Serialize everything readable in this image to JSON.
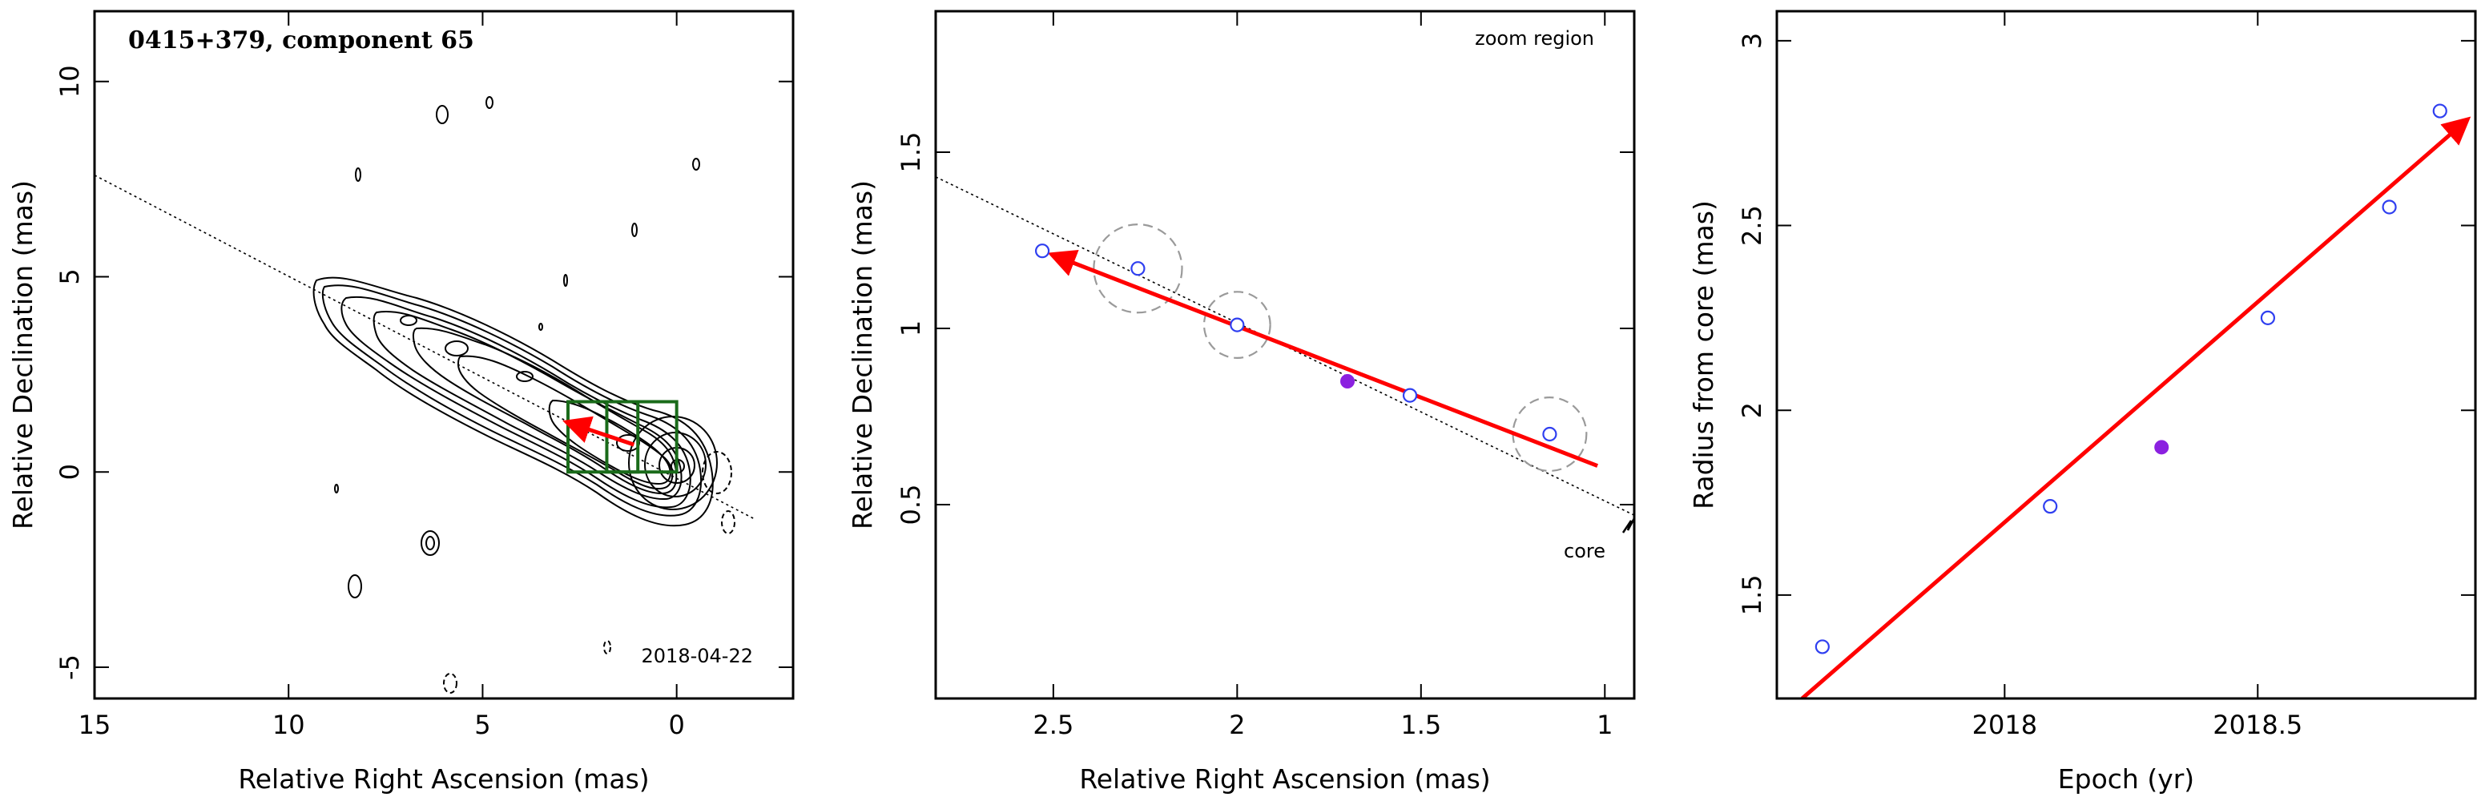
{
  "panels": [
    {
      "title": "0415+379, component 65",
      "epoch_label": "2018-04-22",
      "xlabel": "Relative Right Ascension (mas)",
      "ylabel": "Relative Declination (mas)"
    },
    {
      "annotation_top": "zoom region",
      "annotation_core": "core",
      "xlabel": "Relative Right Ascension (mas)",
      "ylabel": "Relative Declination (mas)"
    },
    {
      "xlabel": "Epoch (yr)",
      "ylabel": "Radius from core (mas)"
    }
  ],
  "colors": {
    "vector": "#ff0000",
    "open_point": "#2f3ff0",
    "filled_point": "#8b21e0",
    "zoom_box": "#1a6b1a",
    "error_circle": "#9a9a9a"
  },
  "chart_data": [
    {
      "type": "contour",
      "title": "0415+379, component 65",
      "xlabel": "Relative Right Ascension (mas)",
      "ylabel": "Relative Declination (mas)",
      "xlim": [
        15,
        -3
      ],
      "ylim": [
        -5.8,
        11.8
      ],
      "xticks": [
        15,
        10,
        5,
        0
      ],
      "yticks": [
        -5,
        0,
        5,
        10
      ],
      "core": [
        0,
        0
      ],
      "ridge_line": {
        "from": [
          15,
          7.6
        ],
        "to": [
          -2,
          -1.2
        ]
      },
      "zoom_boxes": [
        {
          "x": [
            2.8,
            1.0
          ],
          "y": [
            0.0,
            1.8
          ]
        },
        {
          "x": [
            1.8,
            0.0
          ],
          "y": [
            0.0,
            1.8
          ]
        }
      ],
      "vector": {
        "from": [
          1.1,
          0.7
        ],
        "to": [
          2.6,
          1.2
        ]
      },
      "epoch": "2018-04-22"
    },
    {
      "type": "scatter",
      "annotations": [
        "zoom region",
        "core"
      ],
      "xlabel": "Relative Right Ascension (mas)",
      "ylabel": "Relative Declination (mas)",
      "xlim": [
        2.82,
        0.92
      ],
      "ylim": [
        -0.05,
        1.9
      ],
      "xticks": [
        2.5,
        2,
        1.5,
        1
      ],
      "yticks": [
        0.5,
        1,
        1.5
      ],
      "points": [
        {
          "x": 2.53,
          "y": 1.22,
          "filled": false,
          "error_radius": 0
        },
        {
          "x": 2.27,
          "y": 1.17,
          "filled": false,
          "error_radius": 0.12
        },
        {
          "x": 2.0,
          "y": 1.01,
          "filled": false,
          "error_radius": 0.09
        },
        {
          "x": 1.7,
          "y": 0.85,
          "filled": true,
          "error_radius": 0
        },
        {
          "x": 1.53,
          "y": 0.81,
          "filled": false,
          "error_radius": 0
        },
        {
          "x": 1.15,
          "y": 0.7,
          "filled": false,
          "error_radius": 0.1
        }
      ],
      "ridge_line": {
        "from": [
          2.82,
          1.43
        ],
        "to": [
          0.92,
          0.47
        ]
      },
      "vector": {
        "from": [
          1.02,
          0.61
        ],
        "to": [
          2.48,
          1.2
        ]
      }
    },
    {
      "type": "scatter",
      "xlabel": "Epoch (yr)",
      "ylabel": "Radius from core (mas)",
      "xlim": [
        17.55,
        18.93
      ],
      "ylim": [
        1.22,
        3.08
      ],
      "xticks": [
        {
          "value": 18.0,
          "label": "2018"
        },
        {
          "value": 18.5,
          "label": "2018.5"
        }
      ],
      "yticks": [
        1.5,
        2,
        2.5,
        3
      ],
      "points": [
        {
          "x": 17.64,
          "y": 1.36,
          "filled": false
        },
        {
          "x": 18.09,
          "y": 1.74,
          "filled": false
        },
        {
          "x": 18.31,
          "y": 1.9,
          "filled": true
        },
        {
          "x": 18.52,
          "y": 2.25,
          "filled": false
        },
        {
          "x": 18.76,
          "y": 2.55,
          "filled": false
        },
        {
          "x": 18.86,
          "y": 2.81,
          "filled": false
        }
      ],
      "fit_line": {
        "from": [
          17.6,
          1.22
        ],
        "to": [
          18.9,
          2.77
        ]
      }
    }
  ]
}
